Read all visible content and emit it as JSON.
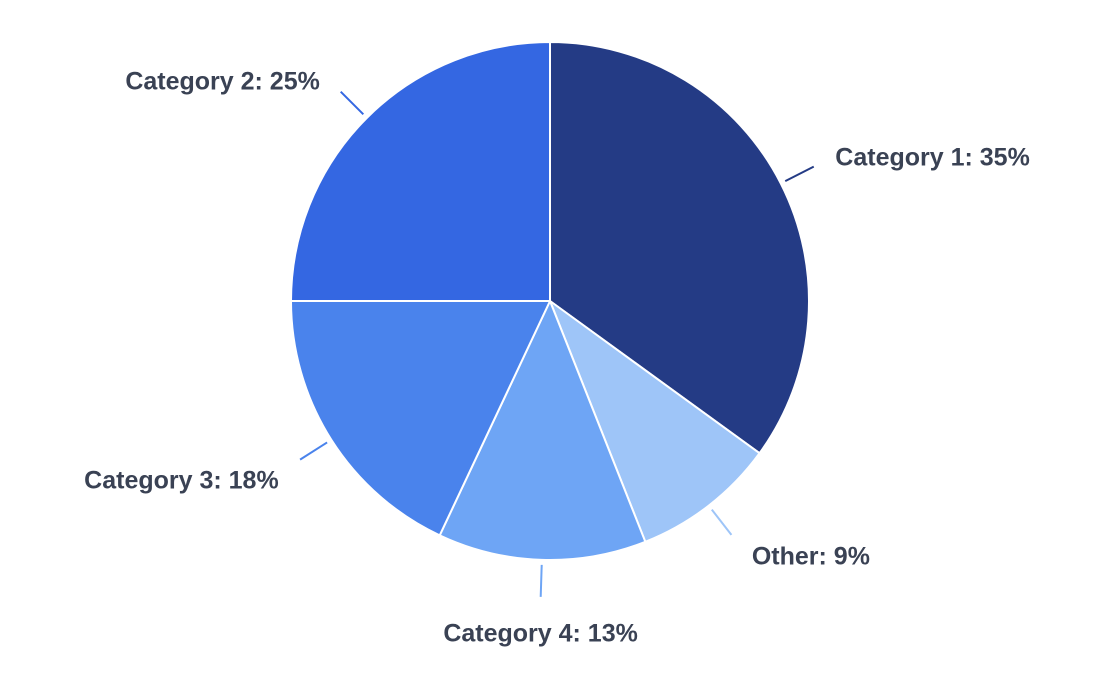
{
  "chart_data": {
    "type": "pie",
    "title": "",
    "start_angle_deg": 0,
    "direction": "clockwise",
    "slices": [
      {
        "label": "Category 1",
        "value": 35,
        "color": "#243b85",
        "display": "Category 1: 35%"
      },
      {
        "label": "Other",
        "value": 9,
        "color": "#9ec5f8",
        "display": "Other: 9%"
      },
      {
        "label": "Category 4",
        "value": 13,
        "color": "#6ea5f5",
        "display": "Category 4: 13%"
      },
      {
        "label": "Category 3",
        "value": 18,
        "color": "#4a83ec",
        "display": "Category 3: 18%"
      },
      {
        "label": "Category 2",
        "value": 25,
        "color": "#3467e2",
        "display": "Category 2: 25%"
      }
    ],
    "label_color": "#3a4254",
    "background": "#ffffff"
  }
}
